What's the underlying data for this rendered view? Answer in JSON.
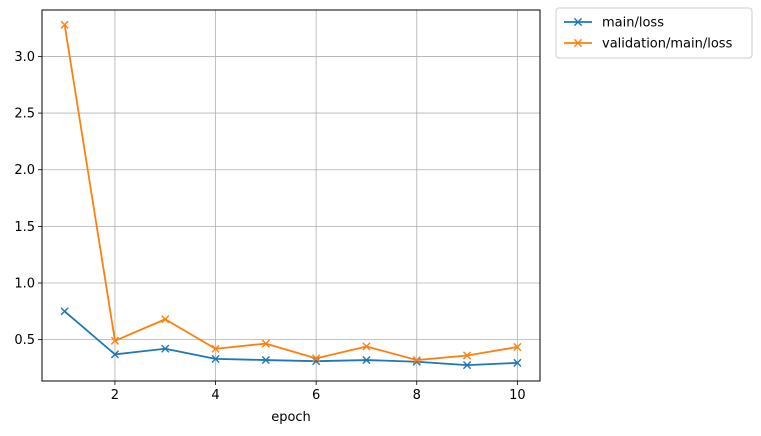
{
  "chart_data": {
    "type": "line",
    "title": "",
    "xlabel": "epoch",
    "ylabel": "",
    "x": [
      1,
      2,
      3,
      4,
      5,
      6,
      7,
      8,
      9,
      10
    ],
    "xlim": [
      0.55,
      10.45
    ],
    "ylim": [
      0.135,
      3.41
    ],
    "xticks": [
      2,
      4,
      6,
      8,
      10
    ],
    "yticks": [
      0.5,
      1.0,
      1.5,
      2.0,
      2.5,
      3.0
    ],
    "xtick_labels": [
      "2",
      "4",
      "6",
      "8",
      "10"
    ],
    "ytick_labels": [
      "0.5",
      "1.0",
      "1.5",
      "2.0",
      "2.5",
      "3.0"
    ],
    "grid": true,
    "legend_position": "outside-top-right",
    "marker": "x",
    "series": [
      {
        "name": "main/loss",
        "color": "#1f77b4",
        "values": [
          0.75,
          0.37,
          0.42,
          0.33,
          0.32,
          0.31,
          0.32,
          0.305,
          0.275,
          0.295
        ]
      },
      {
        "name": "validation/main/loss",
        "color": "#ff7f0e",
        "values": [
          3.28,
          0.49,
          0.68,
          0.42,
          0.465,
          0.335,
          0.44,
          0.32,
          0.36,
          0.435
        ]
      }
    ]
  }
}
